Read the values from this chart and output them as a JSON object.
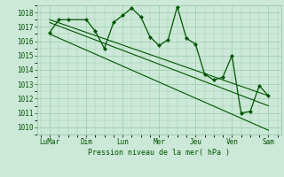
{
  "background_color": "#cce8d8",
  "grid_color": "#99ccaa",
  "line_color": "#005500",
  "marker_color": "#005500",
  "xtick_labels": [
    "LuMar",
    "Dim",
    "Lun",
    "Mer",
    "Jeu",
    "Ven",
    "Sam"
  ],
  "xlabel": "Pression niveau de la mer( hPa )",
  "ylim": [
    1009.5,
    1018.5
  ],
  "yticks": [
    1010,
    1011,
    1012,
    1013,
    1014,
    1015,
    1016,
    1017,
    1018
  ],
  "xlim": [
    -0.2,
    13.2
  ],
  "xtick_positions": [
    0.5,
    2.5,
    4.5,
    6.5,
    8.5,
    10.5,
    12.5
  ],
  "series1_x": [
    0.5,
    1.0,
    1.5,
    2.5,
    3.0,
    3.5,
    4.0,
    4.5,
    5.0,
    5.5,
    6.0,
    6.5,
    7.0,
    7.5,
    8.0,
    8.5,
    9.0,
    9.5,
    10.0,
    10.5,
    11.0,
    11.5,
    12.0,
    12.5
  ],
  "series1_y": [
    1016.6,
    1017.5,
    1017.5,
    1017.5,
    1016.7,
    1015.5,
    1017.3,
    1017.8,
    1018.3,
    1017.7,
    1016.3,
    1015.7,
    1016.1,
    1018.4,
    1016.2,
    1015.8,
    1013.7,
    1013.3,
    1013.5,
    1015.0,
    1011.0,
    1011.1,
    1012.9,
    1012.2
  ],
  "trend1_x": [
    0.5,
    12.5
  ],
  "trend1_y": [
    1017.5,
    1012.2
  ],
  "trend2_x": [
    0.5,
    12.5
  ],
  "trend2_y": [
    1017.3,
    1011.5
  ],
  "trend3_x": [
    0.5,
    12.5
  ],
  "trend3_y": [
    1016.5,
    1009.8
  ],
  "figsize": [
    3.2,
    2.0
  ],
  "dpi": 100
}
